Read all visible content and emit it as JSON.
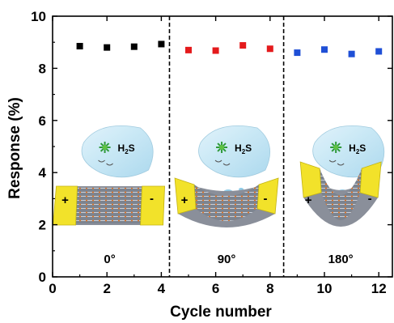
{
  "chart_data": {
    "type": "scatter",
    "xlabel": "Cycle number",
    "ylabel": "Response (%)",
    "xlim": [
      0,
      12.5
    ],
    "ylim": [
      0,
      10
    ],
    "xticks": [
      0,
      2,
      4,
      6,
      8,
      10,
      12
    ],
    "yticks": [
      0,
      2,
      4,
      6,
      8,
      10
    ],
    "grid": false,
    "series": [
      {
        "color": "#000000",
        "x": [
          1,
          2,
          3,
          4
        ],
        "y": [
          8.85,
          8.8,
          8.83,
          8.93
        ]
      },
      {
        "color": "#e41a1c",
        "x": [
          5,
          6,
          7,
          8
        ],
        "y": [
          8.7,
          8.68,
          8.88,
          8.75
        ]
      },
      {
        "color": "#1f4fd6",
        "x": [
          9,
          10,
          11,
          12
        ],
        "y": [
          8.6,
          8.72,
          8.55,
          8.65
        ]
      }
    ],
    "dividers_x": [
      4.3,
      8.5
    ],
    "panels": [
      {
        "angle_label": "0°",
        "gas_label": "H",
        "gas_sub": "2",
        "gas_tail": "S",
        "plus": "+",
        "minus": "-"
      },
      {
        "angle_label": "90°",
        "gas_label": "H",
        "gas_sub": "2",
        "gas_tail": "S",
        "plus": "+",
        "minus": "-"
      },
      {
        "angle_label": "180°",
        "gas_label": "H",
        "gas_sub": "2",
        "gas_tail": "S",
        "plus": "+",
        "minus": "-"
      }
    ]
  },
  "colors": {
    "electrode": "#f2e22a",
    "substrate": "#8a8f9a",
    "bubble": "#b9e3f3"
  }
}
